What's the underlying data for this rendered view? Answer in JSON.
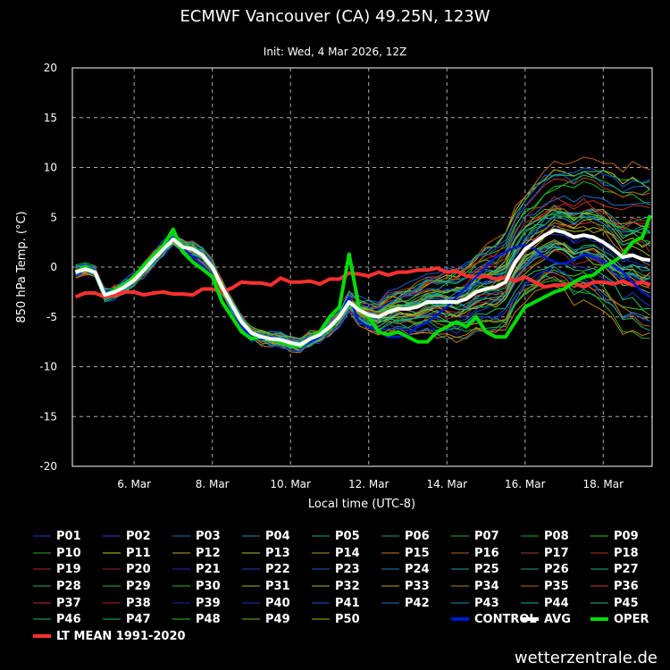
{
  "chart_data": {
    "type": "line",
    "title": "ECMWF Vancouver (CA) 49.25N, 123W",
    "subtitle": "Init: Wed, 4 Mar 2026, 12Z",
    "xlabel": "Local time (UTC-8)",
    "ylabel": "850 hPa Temp. (°C)",
    "ylim": [
      -20,
      20
    ],
    "yticks": [
      20,
      15,
      10,
      5,
      0,
      -5,
      -10,
      -15,
      -20
    ],
    "xlim": [
      4.42,
      19.25
    ],
    "xticks": [
      {
        "day": 6,
        "label": "6. Mar"
      },
      {
        "day": 8,
        "label": "8. Mar"
      },
      {
        "day": 10,
        "label": "10. Mar"
      },
      {
        "day": 12,
        "label": "12. Mar"
      },
      {
        "day": 14,
        "label": "14. Mar"
      },
      {
        "day": 16,
        "label": "16. Mar"
      },
      {
        "day": 18,
        "label": "18. Mar"
      }
    ],
    "grid": true,
    "ensemble_members": [
      "P01",
      "P02",
      "P03",
      "P04",
      "P05",
      "P06",
      "P07",
      "P08",
      "P09",
      "P10",
      "P11",
      "P12",
      "P13",
      "P14",
      "P15",
      "P16",
      "P17",
      "P18",
      "P19",
      "P20",
      "P21",
      "P22",
      "P23",
      "P24",
      "P25",
      "P26",
      "P27",
      "P28",
      "P29",
      "P30",
      "P31",
      "P32",
      "P33",
      "P34",
      "P35",
      "P36",
      "P37",
      "P38",
      "P39",
      "P40",
      "P41",
      "P42",
      "P43",
      "P44",
      "P45",
      "P46",
      "P47",
      "P48",
      "P49",
      "P50"
    ],
    "member_colors": [
      "#1a3dcc",
      "#1a4ad6",
      "#1a6fb0",
      "#1a8fa0",
      "#1aa3a3",
      "#1aa07a",
      "#1ab050",
      "#1ab020",
      "#4cc01a",
      "#20b020",
      "#d6c01a",
      "#c8a01a",
      "#b8c01a",
      "#c08a1a",
      "#c8781a",
      "#c0601a",
      "#b0401a",
      "#b83020",
      "#c02828",
      "#a02020",
      "#1a30c0",
      "#1a40d0",
      "#1a60d0",
      "#1a80c0",
      "#1aa0c0",
      "#1aa0a0",
      "#1ab080",
      "#1ab060",
      "#1ac040",
      "#20c020",
      "#a0c01a",
      "#c0b01a",
      "#c0a01a",
      "#c0801a",
      "#c06020",
      "#c04020",
      "#c02a2a",
      "#b02020",
      "#1a28b0",
      "#1a38c8",
      "#1a50d8",
      "#1a70d0",
      "#1a90c0",
      "#1ab0b0",
      "#1ab090",
      "#1ac070",
      "#1ac050",
      "#30c030",
      "#60c020",
      "#90c01a"
    ],
    "series": [
      {
        "name": "CONTROL",
        "color": "#0018d0",
        "width": 2.5,
        "x": [
          4.5,
          4.75,
          5.0,
          5.25,
          5.5,
          5.75,
          6.0,
          6.25,
          6.5,
          6.75,
          7.0,
          7.25,
          7.5,
          7.75,
          8.0,
          8.25,
          8.5,
          8.75,
          9.0,
          9.25,
          9.5,
          9.75,
          10.0,
          10.25,
          10.5,
          10.75,
          11.0,
          11.25,
          11.5,
          11.75,
          12.0,
          12.25,
          12.5,
          12.75,
          13.0,
          13.25,
          13.5,
          13.75,
          14.0,
          14.25,
          14.5,
          14.75,
          15.0,
          15.25,
          15.5,
          15.75,
          16.0,
          16.25,
          16.5,
          16.75,
          17.0,
          17.25,
          17.5,
          17.75,
          18.0,
          18.25,
          18.5,
          18.75,
          19.0,
          19.2
        ],
        "y": [
          -0.5,
          0.0,
          -0.3,
          -2.5,
          -2.2,
          -1.8,
          -1.0,
          0.0,
          1.0,
          2.2,
          3.0,
          2.0,
          1.0,
          0.2,
          -1.0,
          -3.5,
          -4.8,
          -6.0,
          -7.0,
          -7.3,
          -7.0,
          -7.4,
          -7.8,
          -8.2,
          -7.5,
          -7.0,
          -6.0,
          -5.0,
          -3.0,
          -5.5,
          -6.0,
          -6.5,
          -7.0,
          -7.0,
          -6.8,
          -6.0,
          -5.5,
          -4.8,
          -4.0,
          -3.0,
          -2.0,
          -1.0,
          0.0,
          1.0,
          1.5,
          2.0,
          2.2,
          1.8,
          1.0,
          0.5,
          0.3,
          0.8,
          1.2,
          1.0,
          0.5,
          0.2,
          -0.5,
          -1.5,
          -2.5,
          -3.0
        ]
      },
      {
        "name": "AVG",
        "color": "#ffffff",
        "width": 4,
        "x": [
          4.5,
          4.75,
          5.0,
          5.25,
          5.5,
          5.75,
          6.0,
          6.25,
          6.5,
          6.75,
          7.0,
          7.25,
          7.5,
          7.75,
          8.0,
          8.25,
          8.5,
          8.75,
          9.0,
          9.25,
          9.5,
          9.75,
          10.0,
          10.25,
          10.5,
          10.75,
          11.0,
          11.25,
          11.5,
          11.75,
          12.0,
          12.25,
          12.5,
          12.75,
          13.0,
          13.25,
          13.5,
          13.75,
          14.0,
          14.25,
          14.5,
          14.75,
          15.0,
          15.25,
          15.5,
          15.75,
          16.0,
          16.25,
          16.5,
          16.75,
          17.0,
          17.25,
          17.5,
          17.75,
          18.0,
          18.25,
          18.5,
          18.75,
          19.0,
          19.2
        ],
        "y": [
          -0.5,
          -0.2,
          -0.5,
          -2.8,
          -2.5,
          -2.0,
          -1.3,
          -0.3,
          0.8,
          1.8,
          2.8,
          2.0,
          1.8,
          1.2,
          0.0,
          -2.0,
          -3.8,
          -5.5,
          -6.6,
          -7.0,
          -7.2,
          -7.3,
          -7.6,
          -7.8,
          -7.2,
          -6.8,
          -6.0,
          -5.0,
          -3.5,
          -4.3,
          -4.8,
          -5.0,
          -4.5,
          -4.2,
          -4.2,
          -4.0,
          -3.5,
          -3.5,
          -3.5,
          -3.5,
          -3.2,
          -2.5,
          -2.2,
          -2.0,
          -1.5,
          0.5,
          1.8,
          2.5,
          3.2,
          3.7,
          3.5,
          3.0,
          3.2,
          3.0,
          2.5,
          1.8,
          1.0,
          1.2,
          0.8,
          0.7
        ]
      },
      {
        "name": "OPER",
        "color": "#00dd00",
        "width": 4,
        "x": [
          4.5,
          4.75,
          5.0,
          5.25,
          5.5,
          5.75,
          6.0,
          6.25,
          6.5,
          6.75,
          7.0,
          7.25,
          7.5,
          7.75,
          8.0,
          8.25,
          8.5,
          8.75,
          9.0,
          9.25,
          9.5,
          9.75,
          10.0,
          10.25,
          10.5,
          10.75,
          11.0,
          11.25,
          11.5,
          11.75,
          12.0,
          12.25,
          12.5,
          12.75,
          13.0,
          13.25,
          13.5,
          13.75,
          14.0,
          14.25,
          14.5,
          14.75,
          15.0,
          15.25,
          15.5,
          15.75,
          16.0,
          16.25,
          16.5,
          16.75,
          17.0,
          17.25,
          17.5,
          17.75,
          18.0,
          18.25,
          18.5,
          18.75,
          19.0,
          19.2
        ],
        "y": [
          -0.5,
          0.0,
          -0.5,
          -2.8,
          -2.3,
          -1.8,
          -1.0,
          0.2,
          1.2,
          2.2,
          3.8,
          1.5,
          0.5,
          -0.2,
          -1.0,
          -3.5,
          -5.0,
          -6.5,
          -7.2,
          -7.0,
          -7.2,
          -7.5,
          -7.8,
          -8.0,
          -7.2,
          -6.5,
          -5.0,
          -4.0,
          1.3,
          -4.0,
          -5.0,
          -6.5,
          -6.8,
          -6.5,
          -7.0,
          -7.5,
          -7.5,
          -6.5,
          -6.0,
          -5.5,
          -6.0,
          -5.0,
          -6.5,
          -7.0,
          -7.0,
          -5.5,
          -4.0,
          -3.5,
          -3.0,
          -2.5,
          -2.2,
          -1.5,
          -1.0,
          -0.8,
          0.0,
          0.5,
          1.2,
          2.5,
          3.0,
          5.2
        ]
      },
      {
        "name": "LT MEAN 1991-2020",
        "color": "#ff3030",
        "width": 4,
        "x": [
          4.5,
          4.75,
          5.0,
          5.25,
          5.5,
          5.75,
          6.0,
          6.25,
          6.5,
          6.75,
          7.0,
          7.25,
          7.5,
          7.75,
          8.0,
          8.25,
          8.5,
          8.75,
          9.0,
          9.25,
          9.5,
          9.75,
          10.0,
          10.25,
          10.5,
          10.75,
          11.0,
          11.25,
          11.5,
          11.75,
          12.0,
          12.25,
          12.5,
          12.75,
          13.0,
          13.25,
          13.5,
          13.75,
          14.0,
          14.25,
          14.5,
          14.75,
          15.0,
          15.25,
          15.5,
          15.75,
          16.0,
          16.25,
          16.5,
          16.75,
          17.0,
          17.25,
          17.5,
          17.75,
          18.0,
          18.25,
          18.5,
          18.75,
          19.0,
          19.2
        ],
        "y": [
          -3.0,
          -2.6,
          -2.6,
          -3.0,
          -2.8,
          -2.5,
          -2.5,
          -2.8,
          -2.6,
          -2.5,
          -2.7,
          -2.7,
          -2.8,
          -2.2,
          -2.2,
          -2.5,
          -2.1,
          -1.5,
          -1.6,
          -1.6,
          -1.8,
          -1.1,
          -1.5,
          -1.5,
          -1.4,
          -1.7,
          -1.2,
          -1.2,
          -0.6,
          -0.7,
          -0.9,
          -0.5,
          -0.8,
          -0.5,
          -0.5,
          -0.3,
          -0.3,
          -0.1,
          -0.5,
          -0.4,
          -0.9,
          -1.0,
          -0.9,
          -1.2,
          -1.0,
          -1.4,
          -1.0,
          -1.5,
          -2.0,
          -1.8,
          -1.8,
          -1.6,
          -2.0,
          -1.5,
          -1.5,
          -1.7,
          -1.4,
          -1.8,
          -1.5,
          -1.8
        ]
      }
    ]
  },
  "legend": {
    "control": "CONTROL",
    "avg": "AVG",
    "oper": "OPER",
    "lt_mean": "LT MEAN 1991-2020"
  },
  "branding": "wetterzentrale.de"
}
